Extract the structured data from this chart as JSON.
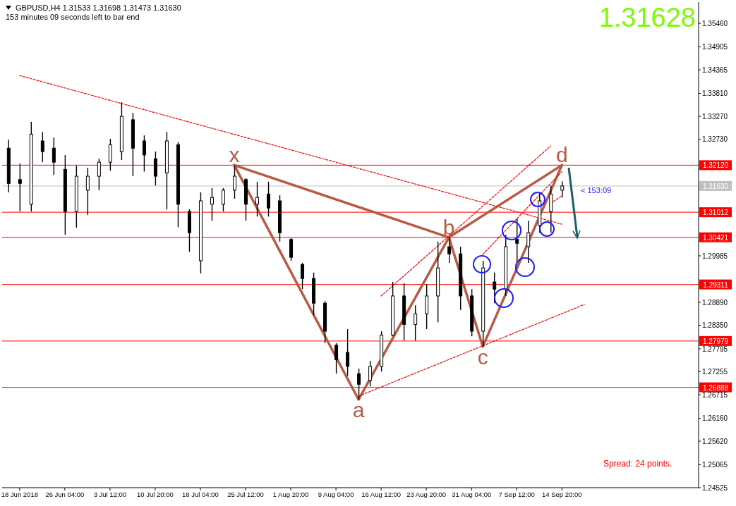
{
  "chart_data": {
    "type": "candlestick",
    "title": "GBPUSD,H4  1.31533 1.31698 1.31473 1.31630",
    "subtitle": "153 minutes 09 seconds left to bar end",
    "color": "#000000",
    "categories": [
      null,
      "18 Jun 2018",
      null,
      null,
      null,
      "26 Jun 04:00",
      null,
      null,
      null,
      "3 Jul 12:00",
      null,
      null,
      null,
      "10 Jul 20:00",
      null,
      null,
      null,
      "18 Jul 04:00",
      null,
      null,
      null,
      "25 Jul 12:00",
      null,
      null,
      null,
      "1 Aug 20:00",
      null,
      null,
      null,
      "9 Aug 04:00",
      null,
      null,
      null,
      "16 Aug 12:00",
      null,
      null,
      null,
      "23 Aug 20:00",
      null,
      null,
      null,
      "31 Aug 04:00",
      null,
      null,
      null,
      "7 Sep 12:00",
      null,
      null,
      null,
      "14 Sep 20:00",
      null,
      null,
      null,
      null,
      null,
      null,
      null,
      null,
      null,
      null,
      null,
      null
    ],
    "ohlc": [
      [
        1.3252,
        1.3272,
        1.3148,
        1.3169
      ],
      [
        1.3178,
        1.3216,
        1.3103,
        1.3169
      ],
      [
        1.312,
        1.3314,
        1.3103,
        1.3285
      ],
      [
        1.3269,
        1.329,
        1.3219,
        1.3244
      ],
      [
        1.3252,
        1.3277,
        1.3189,
        1.3219
      ],
      [
        1.3202,
        1.3236,
        1.3048,
        1.3103
      ],
      [
        1.3103,
        1.3211,
        1.3065,
        1.3186
      ],
      [
        1.3153,
        1.3206,
        1.3095,
        1.3186
      ],
      [
        1.3186,
        1.3227,
        1.3153,
        1.3219
      ],
      [
        1.3219,
        1.3274,
        1.3199,
        1.326
      ],
      [
        1.3244,
        1.336,
        1.3224,
        1.3327
      ],
      [
        1.3319,
        1.3335,
        1.3186,
        1.3252
      ],
      [
        1.3269,
        1.3282,
        1.3197,
        1.3236
      ],
      [
        1.3227,
        1.3244,
        1.3164,
        1.3186
      ],
      [
        1.3194,
        1.329,
        1.3108,
        1.3269
      ],
      [
        1.326,
        1.3266,
        1.3066,
        1.312
      ],
      [
        1.3103,
        1.3108,
        1.3008,
        1.3053
      ],
      [
        1.2987,
        1.3148,
        1.2957,
        1.3128
      ],
      [
        1.312,
        1.3158,
        1.3081,
        1.3136
      ],
      [
        1.312,
        1.3158,
        1.3103,
        1.3153
      ],
      [
        1.3153,
        1.3211,
        1.3133,
        1.3186
      ],
      [
        1.3178,
        1.3181,
        1.3081,
        1.312
      ],
      [
        1.312,
        1.3173,
        1.3091,
        1.3136
      ],
      [
        1.3144,
        1.3173,
        1.3091,
        1.3111
      ],
      [
        1.3128,
        1.3141,
        1.3032,
        1.3053
      ],
      [
        1.3037,
        1.304,
        1.2987,
        1.2995
      ],
      [
        1.2978,
        1.2982,
        1.292,
        1.2945
      ],
      [
        1.2945,
        1.2959,
        1.2859,
        1.2887
      ],
      [
        1.2887,
        1.2892,
        1.2793,
        1.2821
      ],
      [
        1.2788,
        1.2793,
        1.2721,
        1.2754
      ],
      [
        1.2771,
        1.2826,
        1.2716,
        1.2738
      ],
      [
        1.2721,
        1.2733,
        1.266,
        1.2696
      ],
      [
        1.2705,
        1.2751,
        1.2691,
        1.2738
      ],
      [
        1.2738,
        1.2821,
        1.2726,
        1.2812
      ],
      [
        1.2812,
        1.2937,
        1.2809,
        1.2904
      ],
      [
        1.2904,
        1.2934,
        1.2799,
        1.2837
      ],
      [
        1.2837,
        1.2882,
        1.2799,
        1.2862
      ],
      [
        1.2862,
        1.2932,
        1.2826,
        1.2904
      ],
      [
        1.2904,
        1.3032,
        1.2842,
        1.297
      ],
      [
        1.302,
        1.3042,
        1.2982,
        1.3003
      ],
      [
        1.3003,
        1.302,
        1.2871,
        1.2904
      ],
      [
        1.2904,
        1.292,
        1.2809,
        1.2821
      ],
      [
        1.2821,
        1.2987,
        1.2783,
        1.297
      ],
      [
        1.2937,
        1.2959,
        1.2887,
        1.292
      ],
      [
        1.292,
        1.3048,
        1.2904,
        1.302
      ],
      [
        1.3037,
        1.3086,
        1.2982,
        1.3028
      ],
      [
        1.302,
        1.3081,
        1.2982,
        1.3053
      ],
      [
        1.307,
        1.3148,
        1.3053,
        1.3128
      ],
      [
        1.3103,
        1.3164,
        1.3053,
        1.3144
      ],
      [
        1.3153,
        1.3174,
        1.3136,
        1.3163
      ],
      null,
      null,
      null,
      null,
      null,
      null,
      null,
      null,
      null,
      null,
      null,
      null
    ],
    "series": [
      {
        "type": "line",
        "color": "#b85a45",
        "line_style": "solid",
        "values": [
          null,
          null,
          null,
          null,
          null,
          null,
          null,
          null,
          null,
          null,
          null,
          null,
          null,
          null,
          null,
          null,
          null,
          null,
          null,
          null,
          1.3212,
          null,
          null,
          null,
          null,
          null,
          null,
          null,
          null,
          null,
          null,
          1.266,
          null,
          null,
          null,
          null,
          null,
          null,
          null,
          1.3042,
          null,
          null,
          1.2785,
          null,
          null,
          null,
          null,
          null,
          null,
          1.3212,
          null,
          null,
          null,
          null,
          null,
          null,
          null,
          null,
          null,
          null,
          null,
          null
        ]
      },
      {
        "type": "line",
        "color": "#b85a45",
        "line_style": "solid",
        "values": [
          null,
          null,
          null,
          null,
          null,
          null,
          null,
          null,
          null,
          null,
          null,
          null,
          null,
          null,
          null,
          null,
          null,
          null,
          null,
          null,
          1.3212,
          null,
          null,
          null,
          null,
          null,
          null,
          null,
          null,
          null,
          null,
          null,
          null,
          null,
          null,
          null,
          null,
          null,
          null,
          1.3042,
          null,
          null,
          null,
          null,
          null,
          null,
          null,
          null,
          null,
          1.3212,
          null,
          null,
          null,
          null,
          null,
          null,
          null,
          null,
          null,
          null,
          null,
          null
        ]
      },
      {
        "type": "line",
        "color": "#ff0000",
        "line_style": "dashed",
        "x": [
          "18 Jun 2018",
          "14 Sep 20:00"
        ],
        "values": [
          1.3423,
          1.3073
        ]
      },
      {
        "type": "line",
        "color": "#ff0000",
        "line_style": "dashed",
        "values": [
          null,
          null,
          null,
          null,
          null,
          null,
          null,
          null,
          null,
          null,
          null,
          null,
          null,
          null,
          null,
          null,
          null,
          null,
          null,
          null,
          null,
          null,
          null,
          null,
          null,
          null,
          null,
          null,
          null,
          null,
          null,
          null,
          null,
          1.2904,
          null,
          null,
          null,
          null,
          null,
          null,
          null,
          null,
          null,
          null,
          null,
          null,
          null,
          null,
          1.3257,
          null,
          null,
          null,
          null,
          null,
          null,
          null,
          null,
          null,
          null,
          null,
          null,
          null
        ]
      },
      {
        "type": "line",
        "color": "#ff0000",
        "line_style": "dashed",
        "values": [
          null,
          null,
          null,
          null,
          null,
          null,
          null,
          null,
          null,
          null,
          null,
          null,
          null,
          null,
          null,
          null,
          null,
          null,
          null,
          null,
          null,
          null,
          null,
          null,
          null,
          null,
          null,
          null,
          null,
          null,
          null,
          1.2668,
          null,
          null,
          null,
          null,
          null,
          null,
          null,
          null,
          null,
          null,
          null,
          null,
          null,
          null,
          null,
          null,
          null,
          null,
          null,
          1.2884,
          null,
          null,
          null,
          null,
          null,
          null,
          null,
          null,
          null,
          null
        ]
      },
      {
        "type": "line",
        "color": "#ff0000",
        "line_style": "dashed",
        "values": [
          null,
          null,
          null,
          null,
          null,
          null,
          null,
          null,
          null,
          null,
          null,
          null,
          null,
          null,
          null,
          null,
          null,
          null,
          null,
          null,
          null,
          null,
          null,
          null,
          null,
          null,
          null,
          null,
          null,
          null,
          null,
          null,
          null,
          null,
          null,
          null,
          null,
          null,
          null,
          null,
          null,
          null,
          1.3002,
          null,
          null,
          null,
          null,
          null,
          null,
          1.3197,
          null,
          null,
          null,
          null,
          null,
          null,
          null,
          null,
          null,
          null,
          null,
          null
        ]
      },
      {
        "type": "line",
        "color": "#ff0000",
        "line_style": "dashed",
        "values": [
          null,
          null,
          null,
          null,
          null,
          null,
          null,
          null,
          null,
          null,
          null,
          null,
          null,
          null,
          null,
          null,
          null,
          null,
          null,
          null,
          null,
          null,
          null,
          null,
          null,
          null,
          null,
          null,
          null,
          null,
          null,
          null,
          null,
          null,
          null,
          null,
          null,
          null,
          null,
          null,
          null,
          null,
          null,
          null,
          null,
          null,
          null,
          null,
          1.3122,
          1.314,
          null,
          null,
          null,
          null,
          null,
          null,
          null,
          null,
          null,
          null,
          null,
          null
        ]
      }
    ],
    "ylim": [
      1.24525,
      1.3596
    ],
    "yticks": [
      {
        "value": 1.3546,
        "label": "1.35460"
      },
      {
        "value": 1.34905,
        "label": "1.34905"
      },
      {
        "value": 1.34365,
        "label": "1.34365"
      },
      {
        "value": 1.3381,
        "label": "1.33810"
      },
      {
        "value": 1.3327,
        "label": "1.33270"
      },
      {
        "value": 1.3273,
        "label": "1.32730"
      },
      {
        "value": 1.29985,
        "label": "1.29985"
      },
      {
        "value": 1.2889,
        "label": "1.28890"
      },
      {
        "value": 1.2835,
        "label": "1.28350"
      },
      {
        "value": 1.27795,
        "label": "1.27795"
      },
      {
        "value": 1.27255,
        "label": "1.27255"
      },
      {
        "value": 1.26715,
        "label": "1.26715"
      },
      {
        "value": 1.2616,
        "label": "1.26160"
      },
      {
        "value": 1.2562,
        "label": "1.25620"
      },
      {
        "value": 1.25065,
        "label": "1.25065"
      },
      {
        "value": 1.24525,
        "label": "1.24525"
      }
    ],
    "ref_lines": [
      {
        "axis": "y",
        "value": 1.3212,
        "label": "1.32120",
        "color": "#ff0000"
      },
      {
        "axis": "y",
        "value": 1.3163,
        "label": "1.31630",
        "color": "#c0c0c0"
      },
      {
        "axis": "y",
        "value": 1.31012,
        "label": "1.31012",
        "color": "#ff0000"
      },
      {
        "axis": "y",
        "value": 1.30421,
        "label": "1.30421",
        "color": "#ff0000"
      },
      {
        "axis": "y",
        "value": 1.29311,
        "label": "1.29311",
        "color": "#ff0000"
      },
      {
        "axis": "y",
        "value": 1.27979,
        "label": "1.27979",
        "color": "#ff0000"
      },
      {
        "axis": "y",
        "value": 1.26888,
        "label": "1.26888",
        "color": "#ff0000"
      }
    ],
    "annotations": [
      "1.31628",
      "Spread: 24 points.",
      "< 153:09",
      {
        "text": "x",
        "y": 1.3212
      },
      {
        "text": "a",
        "y": 1.266
      },
      {
        "text": "b",
        "y": 1.3042
      },
      {
        "text": "c",
        "y": 1.2785
      },
      {
        "text": "d",
        "y": 1.3212
      }
    ]
  }
}
